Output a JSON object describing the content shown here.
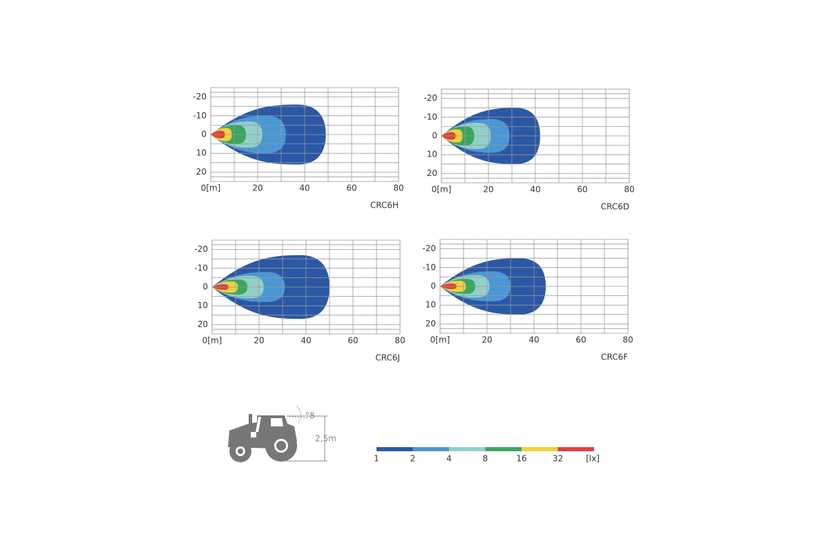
{
  "panels": [
    {
      "name": "CRC6H",
      "xlim": [
        0,
        80
      ],
      "ylim": [
        -25,
        25
      ],
      "xticks": [
        {
          "value": 0,
          "label": "0[m]"
        },
        20,
        40,
        60,
        80
      ],
      "yticks": [
        -20,
        -10,
        0,
        10,
        20
      ]
    },
    {
      "name": "CRC6D",
      "xlim": [
        0,
        80
      ],
      "ylim": [
        -25,
        25
      ],
      "xticks": [
        {
          "value": 0,
          "label": "0[m]"
        },
        20,
        40,
        60,
        80
      ],
      "yticks": [
        -20,
        -10,
        0,
        10,
        20
      ]
    },
    {
      "name": "CRC6J",
      "xlim": [
        0,
        80
      ],
      "ylim": [
        -25,
        25
      ],
      "xticks": [
        {
          "value": 0,
          "label": "0[m]"
        },
        20,
        40,
        60,
        80
      ],
      "yticks": [
        -20,
        -10,
        0,
        10,
        20
      ]
    },
    {
      "name": "CRC6F",
      "xlim": [
        0,
        80
      ],
      "ylim": [
        -25,
        25
      ],
      "xticks": [
        {
          "value": 0,
          "label": "0[m]"
        },
        20,
        40,
        60,
        80
      ],
      "yticks": [
        -20,
        -10,
        0,
        10,
        20
      ]
    }
  ],
  "legend": {
    "unit": "[lx]",
    "levels": [
      {
        "value": 1,
        "color": "#2b58a5"
      },
      {
        "value": 2,
        "color": "#4a97d4"
      },
      {
        "value": 4,
        "color": "#93cfc9"
      },
      {
        "value": 8,
        "color": "#3aa661"
      },
      {
        "value": 16,
        "color": "#f0d23b"
      },
      {
        "value": 32,
        "color": "#e0413d"
      }
    ]
  },
  "tractor": {
    "angle_label": "°8",
    "height_label": "2,5m"
  }
}
